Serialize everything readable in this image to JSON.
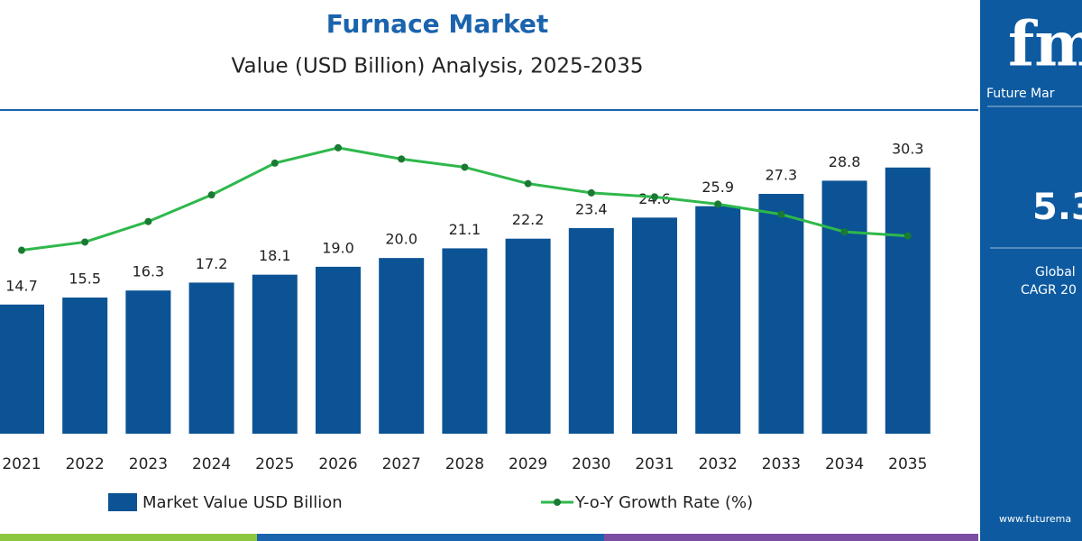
{
  "chart_data": {
    "type": "bar",
    "title": "Furnace Market",
    "subtitle": "Value (USD Billion) Analysis, 2025-2035",
    "categories": [
      "2021",
      "2022",
      "2023",
      "2024",
      "2025",
      "2026",
      "2027",
      "2028",
      "2029",
      "2030",
      "2031",
      "2032",
      "2033",
      "2034",
      "2035"
    ],
    "series": [
      {
        "name": "Market Value USD Billion",
        "color": "#0b5394",
        "type": "bar",
        "values": [
          14.7,
          15.5,
          16.3,
          17.2,
          18.1,
          19,
          20,
          21.1,
          22.2,
          23.4,
          24.6,
          25.9,
          27.3,
          28.8,
          30.3
        ],
        "value_labels": [
          "14.7",
          "15.5",
          "16.3",
          "17.2",
          "18.1",
          "19.0",
          "20.0",
          "21.1",
          "22.2",
          "23.4",
          "24.6",
          "25.9",
          "27.3",
          "28.8",
          "30.3"
        ]
      },
      {
        "name": "Y-o-Y Growth Rate (%)",
        "color": "#2eb84b",
        "type": "line",
        "axis": "y2",
        "values": [
          5.79,
          5.87,
          6.07,
          6.33,
          6.64,
          6.79,
          6.68,
          6.6,
          6.44,
          6.35,
          6.31,
          6.24,
          6.14,
          5.97,
          5.93
        ]
      }
    ],
    "ylim": [
      0,
      35
    ],
    "y2lim": [
      4,
      7
    ]
  },
  "side_panel": {
    "logo": "fmi",
    "brand": "Future Mar",
    "cagr_value": "5.3",
    "region": "Global",
    "cagr_label": "CAGR 20",
    "website": "www.futurema"
  }
}
